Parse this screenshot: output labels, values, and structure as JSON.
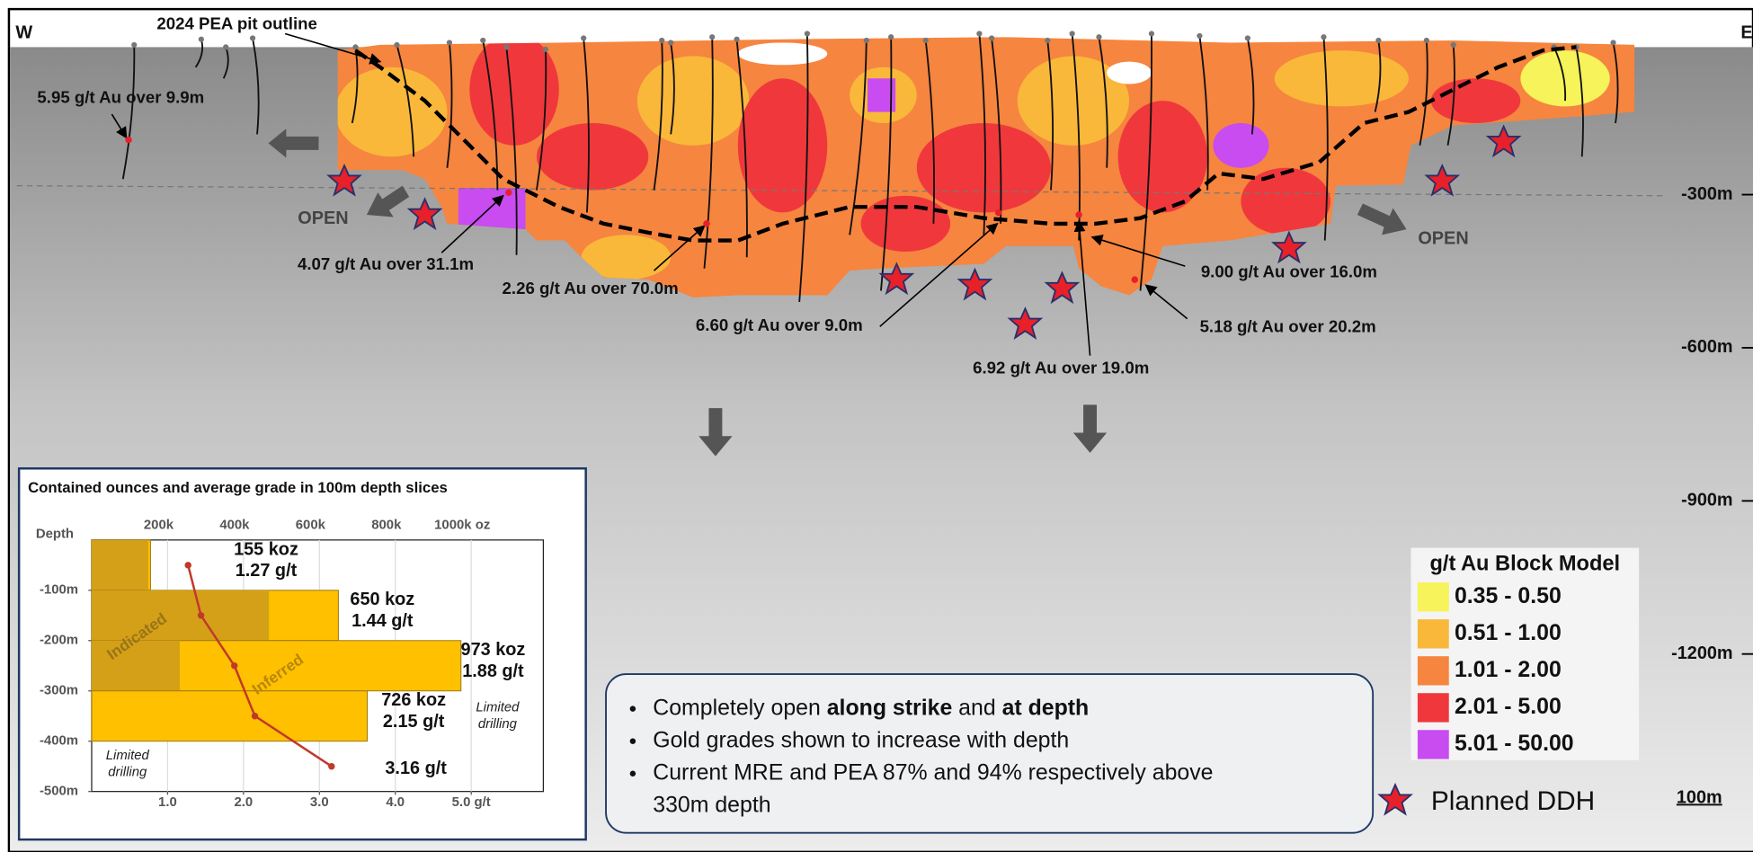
{
  "section": {
    "west": "W",
    "east": "E",
    "pit_outline": "2024 PEA pit outline",
    "intercepts": [
      "5.95 g/t Au over 9.9m",
      "4.07 g/t Au over 31.1m",
      "2.26 g/t Au over 70.0m",
      "6.60 g/t Au over 9.0m",
      "6.92 g/t Au over 19.0m",
      "9.00 g/t Au over 16.0m",
      "5.18 g/t Au over 20.2m"
    ],
    "open_left": "OPEN",
    "open_right": "OPEN",
    "depth_ticks": [
      {
        "value": -300,
        "label": "-300m"
      },
      {
        "value": -600,
        "label": "-600m"
      },
      {
        "value": -900,
        "label": "-900m"
      },
      {
        "value": -1200,
        "label": "-1200m"
      }
    ],
    "scale_bar": "100m"
  },
  "legend": {
    "title": "g/t Au Block Model",
    "items": [
      {
        "label": "0.35 - 0.50",
        "color": "#f7f35a"
      },
      {
        "label": "0.51 - 1.00",
        "color": "#f9b83a"
      },
      {
        "label": "1.01 - 2.00",
        "color": "#f6853f"
      },
      {
        "label": "2.01 - 5.00",
        "color": "#f0383c"
      },
      {
        "label": "5.01 - 50.00",
        "color": "#c84cf0"
      }
    ],
    "planned": "Planned DDH"
  },
  "text_box": {
    "bullet_1": [
      "Completely open ",
      "along strike",
      " and ",
      "at depth"
    ],
    "bullet_2": "Gold grades shown to increase with depth",
    "bullet_3": [
      "Current MRE and PEA 87% and 94% respectively above",
      "330m depth"
    ]
  },
  "chart_data": {
    "type": "bar",
    "orientation": "horizontal",
    "title": "Contained ounces and average grade in 100m depth slices",
    "y_label": "Depth",
    "values": [
      155,
      650,
      973,
      726
    ],
    "value_labels": [
      "155 koz",
      "650 koz",
      "973 koz",
      "726 koz"
    ],
    "color": "#ffc000",
    "slice_top": [
      0,
      -100,
      -200,
      -300
    ],
    "slice_bottom": [
      -100,
      -200,
      -300,
      -400
    ],
    "indicated": {
      "name": "Indicated",
      "color": "#d4a017",
      "values": [
        149,
        467,
        232,
        0
      ]
    },
    "inferred_label": "Inferred",
    "grade": {
      "color": "#c0392b",
      "values": [
        1.27,
        1.44,
        1.88,
        2.15,
        3.16
      ],
      "value_labels": [
        "1.27 g/t",
        "1.44 g/t",
        "1.88 g/t",
        "2.15 g/t",
        "3.16 g/t"
      ],
      "depth": [
        -50,
        -150,
        -250,
        -350,
        -450
      ]
    },
    "xlim": [
      0,
      1190
    ],
    "xticks": [
      {
        "value": 200,
        "label": "200k"
      },
      {
        "value": 400,
        "label": "400k"
      },
      {
        "value": 600,
        "label": "600k"
      },
      {
        "value": 800,
        "label": "800k"
      },
      {
        "value": 1000,
        "label": "1000k oz"
      }
    ],
    "x2lim": [
      0,
      5.95
    ],
    "x2ticks": [
      {
        "value": 1,
        "label": "1.0"
      },
      {
        "value": 2,
        "label": "2.0"
      },
      {
        "value": 3,
        "label": "3.0"
      },
      {
        "value": 4,
        "label": "4.0"
      },
      {
        "value": 5,
        "label": "5.0 g/t"
      }
    ],
    "ylim": [
      0,
      -500
    ],
    "yticks": [
      {
        "value": -100,
        "label": "-100m"
      },
      {
        "value": -200,
        "label": "-200m"
      },
      {
        "value": -300,
        "label": "-300m"
      },
      {
        "value": -400,
        "label": "-400m"
      },
      {
        "value": -500,
        "label": "-500m"
      }
    ],
    "limited_right": [
      "Limited",
      "drilling"
    ],
    "limited_left": [
      "Limited",
      "drilling"
    ]
  }
}
